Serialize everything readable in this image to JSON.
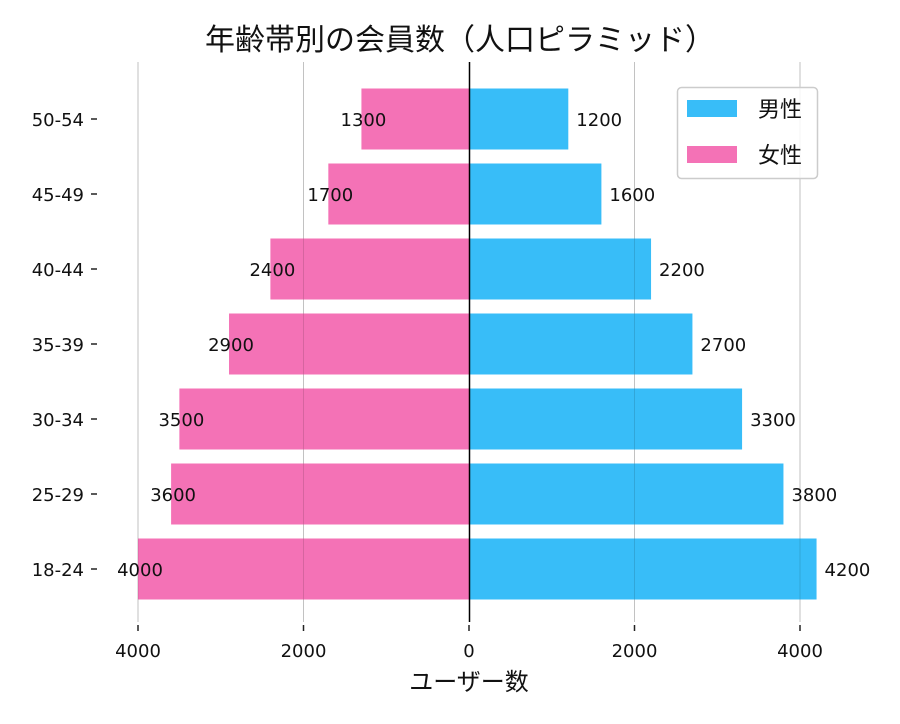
{
  "chart_data": {
    "type": "bar",
    "orientation": "horizontal",
    "layout": "population-pyramid",
    "title": "年齢帯別の会員数（人口ピラミッド）",
    "xlabel": "ユーザー数",
    "ylabel": "",
    "categories": [
      "18-24",
      "25-29",
      "30-34",
      "35-39",
      "40-44",
      "45-49",
      "50-54"
    ],
    "series": [
      {
        "name": "男性",
        "side": "right",
        "color": "#38BDF8",
        "values": [
          4200,
          3800,
          3300,
          2700,
          2200,
          1600,
          1200
        ]
      },
      {
        "name": "女性",
        "side": "left",
        "color": "#F472B6",
        "values": [
          4000,
          3600,
          3500,
          2900,
          2400,
          1700,
          1300
        ]
      }
    ],
    "xlim": [
      -4000,
      4000
    ],
    "xticks": [
      -4000,
      -2000,
      0,
      2000,
      4000
    ],
    "xtick_labels": [
      "4000",
      "2000",
      "0",
      "2000",
      "4000"
    ],
    "grid": "vertical",
    "legend": "top-right",
    "data_labels": true
  }
}
